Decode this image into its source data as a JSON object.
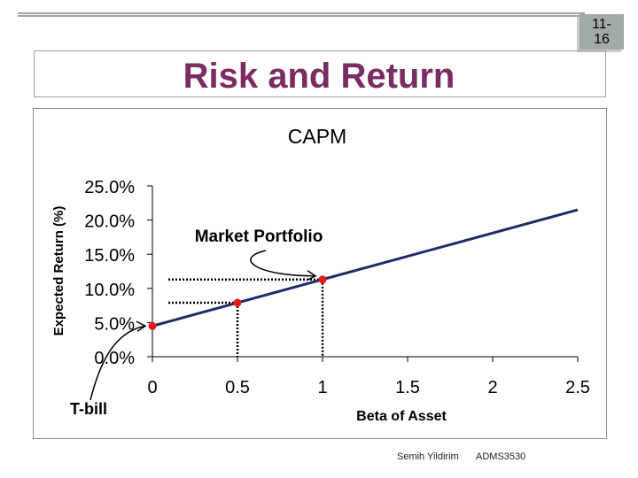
{
  "slide_number": "11-\n16",
  "slide_title": "Risk and Return",
  "footer": {
    "author": "Semih Yildirim",
    "course": "ADMS3530"
  },
  "chart_data": {
    "type": "line",
    "title": "CAPM",
    "xlabel": "Beta of Asset",
    "ylabel": "Expected Return (%)",
    "x_ticks": [
      0,
      0.5,
      1,
      1.5,
      2,
      2.5
    ],
    "x_tick_labels": [
      "0",
      "0.5",
      "1",
      "1.5",
      "2",
      "2.5"
    ],
    "y_ticks": [
      0,
      5,
      10,
      15,
      20,
      25
    ],
    "y_tick_labels": [
      "0.0%",
      "5.0%",
      "10.0%",
      "15.0%",
      "20.0%",
      "25.0%"
    ],
    "xlim": [
      0,
      2.5
    ],
    "ylim": [
      0,
      25
    ],
    "grid": false,
    "series": [
      {
        "x": [
          0,
          2.5
        ],
        "y": [
          4.5,
          21.5
        ],
        "color": "#1f2a6b"
      }
    ],
    "points": [
      {
        "x": 0,
        "y": 4.5,
        "color": "#e31b1b"
      },
      {
        "x": 0.5,
        "y": 7.9,
        "color": "#e31b1b"
      },
      {
        "x": 1,
        "y": 11.3,
        "color": "#e31b1b"
      }
    ],
    "annotations": [
      {
        "text": "Market Portfolio",
        "x": 1,
        "y": 11.3
      },
      {
        "text": "T-bill",
        "x": 0,
        "y": 4.5
      }
    ]
  }
}
